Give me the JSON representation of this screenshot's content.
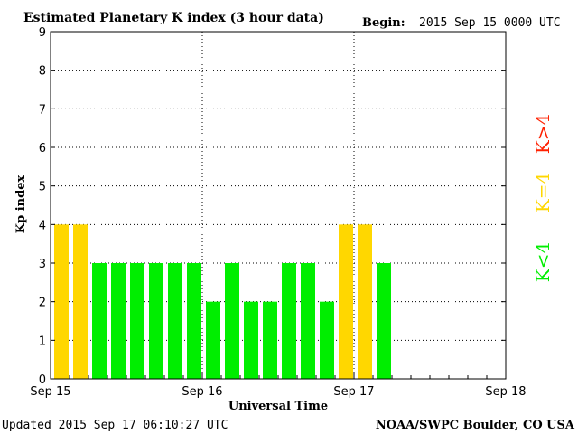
{
  "chart_data": {
    "type": "bar",
    "title": "Estimated Planetary K index (3 hour data)",
    "begin_label": "Begin:",
    "begin_value": "2015 Sep 15 0000 UTC",
    "xlabel": "Universal Time",
    "ylabel": "Kp index",
    "ylim": [
      0,
      9
    ],
    "xlim_days": [
      0,
      3
    ],
    "x_tick_labels": [
      "Sep 15",
      "Sep 16",
      "Sep 17",
      "Sep 18"
    ],
    "y_tick_labels": [
      "0",
      "1",
      "2",
      "3",
      "4",
      "5",
      "6",
      "7",
      "8",
      "9"
    ],
    "grid": true,
    "interval_hours": 3,
    "values": [
      4,
      4,
      3,
      3,
      3,
      3,
      3,
      3,
      2,
      3,
      2,
      2,
      3,
      3,
      2,
      4,
      4,
      3
    ],
    "legend": [
      {
        "label": "K<4",
        "color": "#00ee00"
      },
      {
        "label": "K=4",
        "color": "#ffd700"
      },
      {
        "label": "K>4",
        "color": "#ff2000"
      }
    ],
    "colors": {
      "below": "#00ee00",
      "equal": "#ffd700",
      "above": "#ff2000"
    }
  },
  "footer": {
    "updated": "Updated 2015 Sep 17 06:10:27 UTC",
    "source": "NOAA/SWPC Boulder, CO USA"
  }
}
